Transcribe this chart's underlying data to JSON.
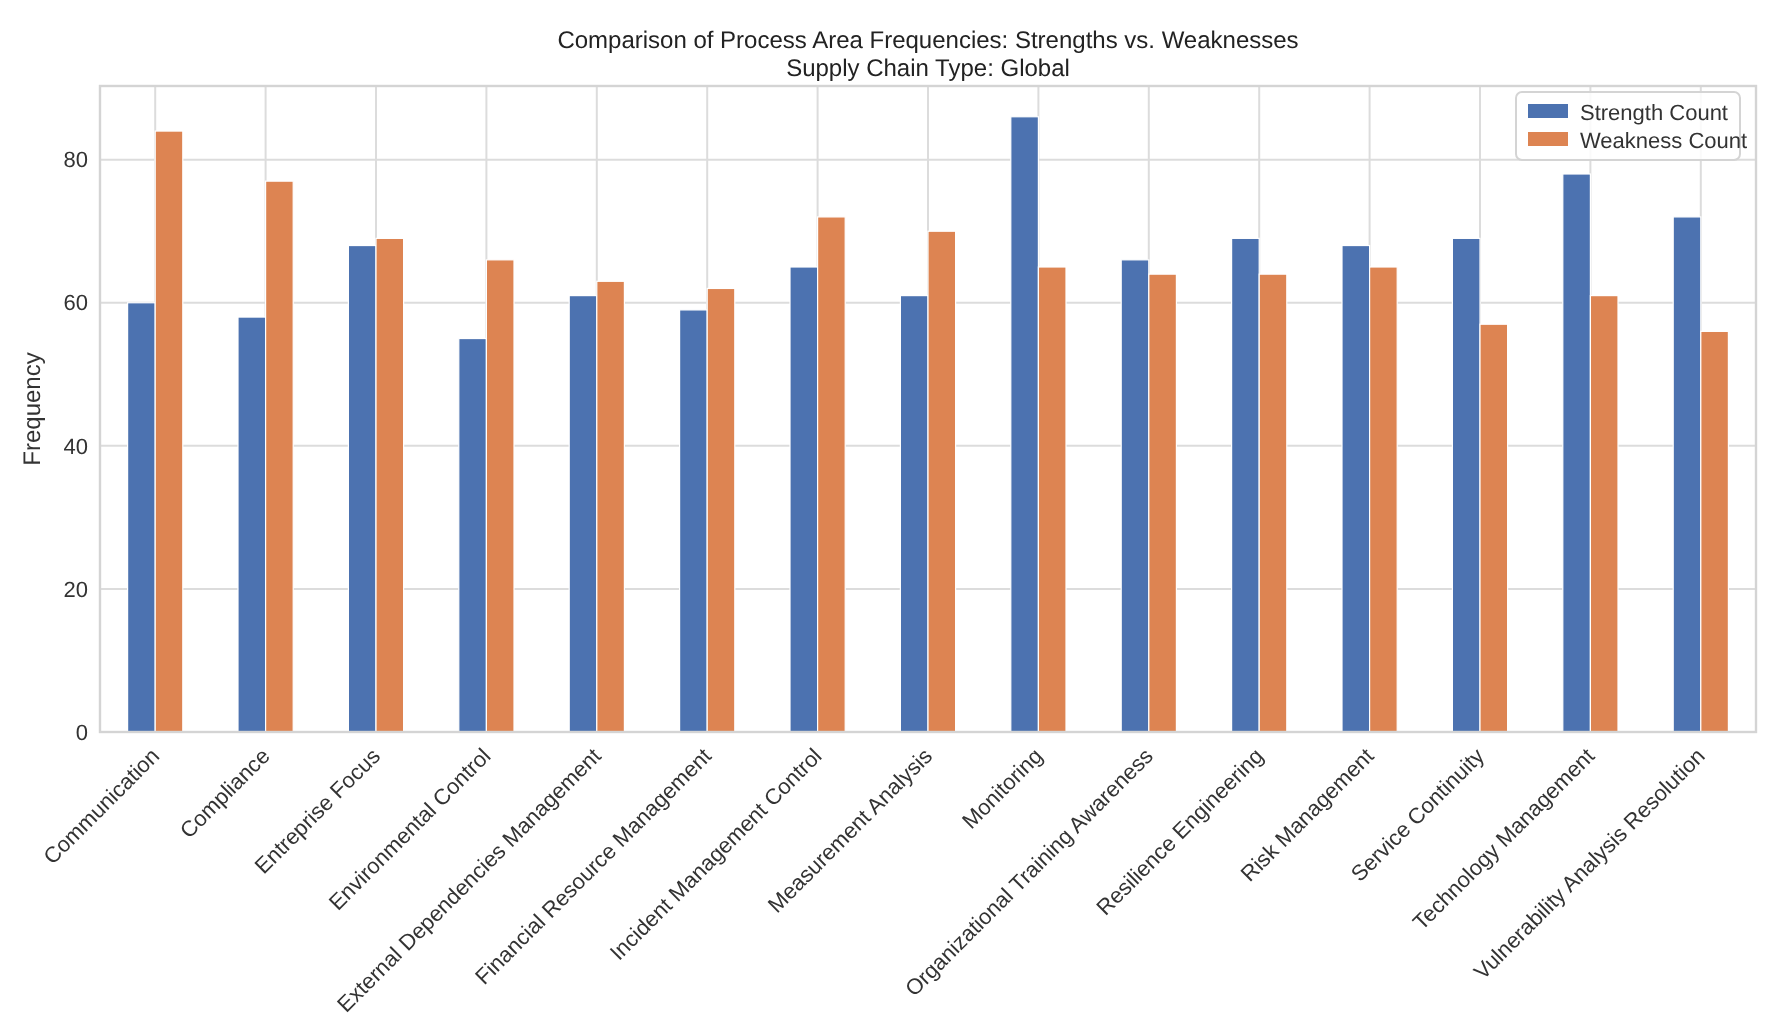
{
  "chart_data": {
    "type": "bar",
    "title": "Comparison of Process Area Frequencies: Strengths vs. Weaknesses",
    "subtitle": "Supply Chain Type: Global",
    "ylabel": "Frequency",
    "categories": [
      "Communication",
      "Compliance",
      "Entreprise Focus",
      "Environmental Control",
      "External Dependencies Management",
      "Financial Resource Management",
      "Incident Management Control",
      "Measurement Analysis",
      "Monitoring",
      "Organizational Training Awareness",
      "Resilience Engineering",
      "Risk Management",
      "Service Continuity",
      "Technology Management",
      "Vulnerability Analysis Resolution"
    ],
    "series": [
      {
        "name": "Strength Count",
        "color": "#4c72b0",
        "values": [
          60,
          58,
          68,
          55,
          61,
          59,
          65,
          61,
          86,
          66,
          69,
          68,
          69,
          78,
          72
        ]
      },
      {
        "name": "Weakness Count",
        "color": "#dd8452",
        "values": [
          84,
          77,
          69,
          66,
          63,
          62,
          72,
          70,
          65,
          64,
          64,
          65,
          57,
          61,
          56
        ]
      }
    ],
    "ylim": [
      0,
      90.3
    ],
    "yticks": [
      0,
      20,
      40,
      60,
      80
    ],
    "grid": true,
    "legend": "top right"
  }
}
